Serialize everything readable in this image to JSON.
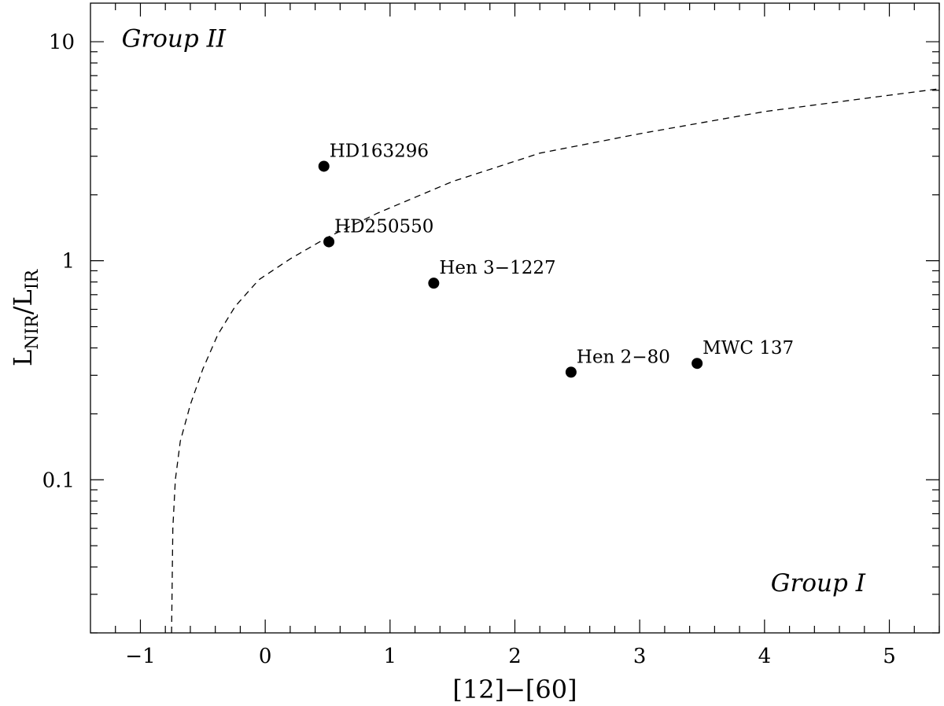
{
  "chart_data": {
    "type": "scatter",
    "title": "",
    "xlabel": "[12]−[60]",
    "ylabel": {
      "main": "L",
      "sub1": "NIR",
      "slash": "/L",
      "sub2": "IR"
    },
    "xlim": [
      -1.4,
      5.4
    ],
    "ylim": [
      0.02,
      15
    ],
    "yscale": "log",
    "grid": false,
    "x_ticks": [
      {
        "value": -1,
        "label": "−1"
      },
      {
        "value": 0,
        "label": "0"
      },
      {
        "value": 1,
        "label": "1"
      },
      {
        "value": 2,
        "label": "2"
      },
      {
        "value": 3,
        "label": "3"
      },
      {
        "value": 4,
        "label": "4"
      },
      {
        "value": 5,
        "label": "5"
      }
    ],
    "y_ticks": [
      {
        "value": 0.1,
        "label": "0.1"
      },
      {
        "value": 1,
        "label": "1"
      },
      {
        "value": 10,
        "label": "10"
      }
    ],
    "points": [
      {
        "name": "HD163296",
        "x": 0.47,
        "y": 2.7
      },
      {
        "name": "HD250550",
        "x": 0.51,
        "y": 1.22
      },
      {
        "name": "Hen 3−1227",
        "x": 1.35,
        "y": 0.79
      },
      {
        "name": "Hen 2−80",
        "x": 2.45,
        "y": 0.31
      },
      {
        "name": "MWC 137",
        "x": 3.46,
        "y": 0.34
      }
    ],
    "annotations": [
      {
        "text": "Group II",
        "x": -1.15,
        "y": 9.5
      },
      {
        "text": "Group I",
        "x": 4.05,
        "y": 0.031
      }
    ],
    "boundary_curve": {
      "style": "dashed",
      "x_asymptote": -0.75,
      "points": [
        [
          -0.75,
          0.02
        ],
        [
          -0.74,
          0.06
        ],
        [
          -0.72,
          0.1
        ],
        [
          -0.68,
          0.15
        ],
        [
          -0.6,
          0.22
        ],
        [
          -0.5,
          0.32
        ],
        [
          -0.38,
          0.46
        ],
        [
          -0.24,
          0.62
        ],
        [
          -0.05,
          0.82
        ],
        [
          0.2,
          1.02
        ],
        [
          0.5,
          1.28
        ],
        [
          0.9,
          1.65
        ],
        [
          1.5,
          2.3
        ],
        [
          2.2,
          3.1
        ],
        [
          3.0,
          3.8
        ],
        [
          4.0,
          4.8
        ],
        [
          5.0,
          5.7
        ],
        [
          5.4,
          6.1
        ]
      ]
    }
  }
}
